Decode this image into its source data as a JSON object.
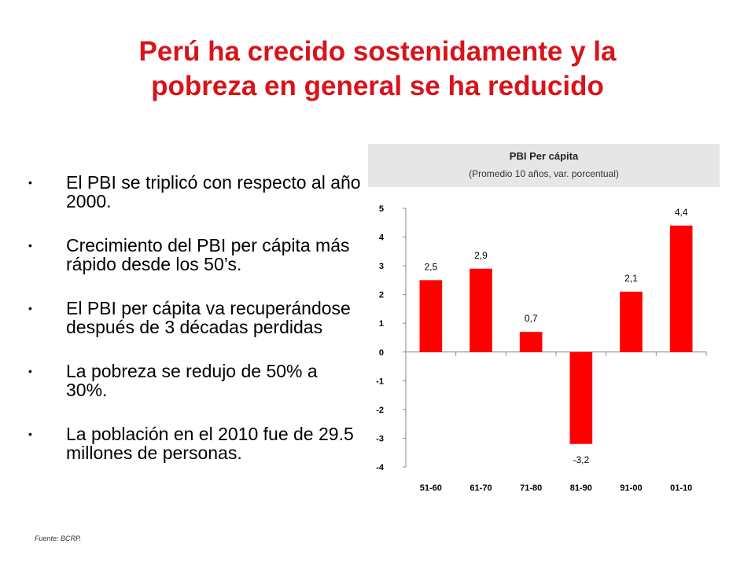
{
  "title": {
    "line1": "Perú ha crecido sostenidamente y la",
    "line2": "pobreza en general se ha reducido"
  },
  "bullets": [
    "El PBI se triplicó con respecto al año 2000.",
    "Crecimiento del PBI per cápita más rápido desde los 50’s.",
    "El PBI per cápita va recuperándose después de 3 décadas perdidas",
    "La pobreza se redujo de 50% a 30%.",
    "La población en el 2010 fue de 29.5 millones de personas."
  ],
  "bullet_symbol": "•",
  "source": "Fuente: BCRP.",
  "colors": {
    "title": "#d7141a",
    "bar": "#ff0000",
    "header_bg": "#e6e6e6"
  },
  "chart_data": {
    "type": "bar",
    "title": "PBI Per cápita",
    "subtitle": "(Promedio 10 años, var. porcentual)",
    "categories": [
      "51-60",
      "61-70",
      "71-80",
      "81-90",
      "91-00",
      "01-10"
    ],
    "values": [
      2.5,
      2.9,
      0.7,
      -3.2,
      2.1,
      4.4
    ],
    "value_labels": [
      "2,5",
      "2,9",
      "0,7",
      "-3,2",
      "2,1",
      "4,4"
    ],
    "ylim": [
      -4,
      5
    ],
    "yticks": [
      -4,
      -3,
      -2,
      -1,
      0,
      1,
      2,
      3,
      4,
      5
    ],
    "xlabel": "",
    "ylabel": "",
    "grid": false,
    "legend": "none"
  }
}
